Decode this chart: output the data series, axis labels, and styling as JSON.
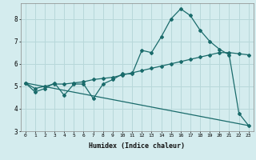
{
  "xlabel": "Humidex (Indice chaleur)",
  "background_color": "#d4ecee",
  "grid_color": "#b8d8da",
  "line_color": "#1a6b6b",
  "xlim": [
    -0.5,
    23.5
  ],
  "ylim": [
    3.0,
    8.7
  ],
  "xticks": [
    0,
    1,
    2,
    3,
    4,
    5,
    6,
    7,
    8,
    9,
    10,
    11,
    12,
    13,
    14,
    15,
    16,
    17,
    18,
    19,
    20,
    21,
    22,
    23
  ],
  "yticks": [
    3,
    4,
    5,
    6,
    7,
    8
  ],
  "line1_x": [
    0,
    1,
    2,
    3,
    4,
    5,
    6,
    7,
    8,
    9,
    10,
    11,
    12,
    13,
    14,
    15,
    16,
    17,
    18,
    19,
    20,
    21,
    22,
    23
  ],
  "line1_y": [
    5.15,
    4.75,
    4.9,
    5.15,
    4.6,
    5.1,
    5.1,
    4.45,
    5.1,
    5.3,
    5.55,
    5.55,
    6.6,
    6.5,
    7.2,
    8.0,
    8.45,
    8.15,
    7.5,
    7.0,
    6.65,
    6.4,
    3.8,
    3.25
  ],
  "line2_x": [
    0,
    1,
    2,
    3,
    4,
    5,
    6,
    7,
    8,
    9,
    10,
    11,
    12,
    13,
    14,
    15,
    16,
    17,
    18,
    19,
    20,
    21,
    22,
    23
  ],
  "line2_y": [
    5.15,
    4.9,
    5.0,
    5.1,
    5.1,
    5.15,
    5.2,
    5.3,
    5.35,
    5.4,
    5.5,
    5.6,
    5.7,
    5.8,
    5.9,
    6.0,
    6.1,
    6.2,
    6.3,
    6.4,
    6.5,
    6.5,
    6.45,
    6.4
  ],
  "line3_x": [
    0,
    23
  ],
  "line3_y": [
    5.15,
    3.25
  ]
}
